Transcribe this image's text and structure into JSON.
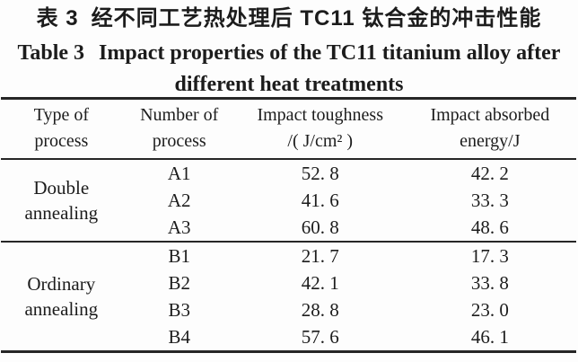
{
  "titles": {
    "chinese_label": "表 3",
    "chinese_text": "经不同工艺热处理后 TC11 钛合金的冲击性能",
    "english_label": "Table 3",
    "english_line1": "Impact properties of the TC11 titanium alloy after",
    "english_line2": "different heat treatments"
  },
  "table": {
    "headers": [
      {
        "line1": "Type of",
        "line2": "process"
      },
      {
        "line1": "Number of",
        "line2": "process"
      },
      {
        "line1": "Impact toughness",
        "line2": "/( J/cm² )"
      },
      {
        "line1": "Impact absorbed",
        "line2": "energy/J"
      }
    ],
    "groups": [
      {
        "type": "Double annealing",
        "rows": [
          {
            "number": "A1",
            "toughness": "52. 8",
            "energy": "42. 2"
          },
          {
            "number": "A2",
            "toughness": "41. 6",
            "energy": "33. 3"
          },
          {
            "number": "A3",
            "toughness": "60. 8",
            "energy": "48. 6"
          }
        ]
      },
      {
        "type": "Ordinary annealing",
        "rows": [
          {
            "number": "B1",
            "toughness": "21. 7",
            "energy": "17. 3"
          },
          {
            "number": "B2",
            "toughness": "42. 1",
            "energy": "33. 8"
          },
          {
            "number": "B3",
            "toughness": "28. 8",
            "energy": "23. 0"
          },
          {
            "number": "B4",
            "toughness": "57. 6",
            "energy": "46. 1"
          }
        ]
      }
    ]
  },
  "chart_data": {
    "type": "table",
    "title": "Table 3 Impact properties of the TC11 titanium alloy after different heat treatments",
    "title_chinese": "表 3 经不同工艺热处理后 TC11 钛合金的冲击性能",
    "columns": [
      "Type of process",
      "Number of process",
      "Impact toughness /(J/cm²)",
      "Impact absorbed energy/J"
    ],
    "rows": [
      [
        "Double annealing",
        "A1",
        52.8,
        42.2
      ],
      [
        "Double annealing",
        "A2",
        41.6,
        33.3
      ],
      [
        "Double annealing",
        "A3",
        60.8,
        48.6
      ],
      [
        "Ordinary annealing",
        "B1",
        21.7,
        17.3
      ],
      [
        "Ordinary annealing",
        "B2",
        42.1,
        33.8
      ],
      [
        "Ordinary annealing",
        "B3",
        28.8,
        23.0
      ],
      [
        "Ordinary annealing",
        "B4",
        57.6,
        46.1
      ]
    ]
  },
  "colors": {
    "text": "#1c1c1c",
    "rule": "#262626",
    "background": "#fdfdfd"
  }
}
